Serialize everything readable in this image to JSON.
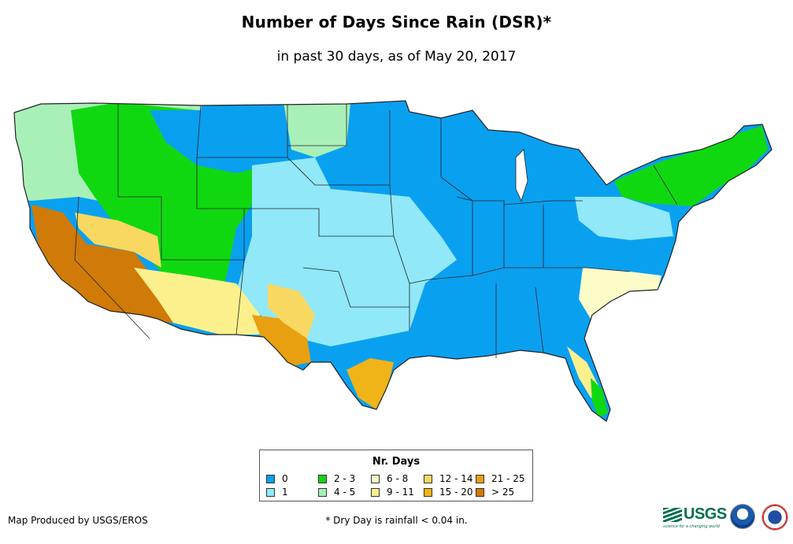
{
  "title": "Number of Days Since Rain (DSR)*",
  "subtitle": "in past 30 days, as of May 20, 2017",
  "legend": {
    "title": "Nr. Days",
    "items": [
      {
        "label": "0",
        "color": "#0aa0f0"
      },
      {
        "label": "1",
        "color": "#90e8f8"
      },
      {
        "label": "2 - 3",
        "color": "#10d810"
      },
      {
        "label": "4 - 5",
        "color": "#a8f0b8"
      },
      {
        "label": "6 - 8",
        "color": "#fcfcc8"
      },
      {
        "label": "9 - 11",
        "color": "#fcf08c"
      },
      {
        "label": "12 - 14",
        "color": "#f8d860"
      },
      {
        "label": "15 - 20",
        "color": "#f0b418"
      },
      {
        "label": "21 - 25",
        "color": "#e8a010"
      },
      {
        "label": "> 25",
        "color": "#d07a08"
      }
    ]
  },
  "footer": {
    "credit": "Map Produced by USGS/EROS",
    "footnote": "* Dry Day is rainfall < 0.04 in."
  },
  "logos": {
    "usgs": "USGS",
    "usgs_tagline": "science for a changing world",
    "noaa": "noaa-logo",
    "nws": "nws-logo"
  },
  "map_regions": [
    {
      "name": "pacific-northwest",
      "days": "4 - 5",
      "color": "#a8f0b8"
    },
    {
      "name": "northern-rockies",
      "days": "2 - 3",
      "color": "#10d810"
    },
    {
      "name": "northern-plains-midwest-southeast",
      "days": "0",
      "color": "#0aa0f0"
    },
    {
      "name": "central-southern-plains",
      "days": "1",
      "color": "#90e8f8"
    },
    {
      "name": "california-desert-southwest",
      "days": "> 25",
      "color": "#d07a08"
    },
    {
      "name": "great-basin",
      "days": "12 - 14",
      "color": "#f8d860"
    },
    {
      "name": "west-texas",
      "days": "21 - 25",
      "color": "#e8a010"
    },
    {
      "name": "south-texas",
      "days": "15 - 20",
      "color": "#f0b418"
    },
    {
      "name": "northeast",
      "days": "2 - 3",
      "color": "#10d810"
    },
    {
      "name": "mid-atlantic",
      "days": "6 - 8",
      "color": "#fcfcc8"
    },
    {
      "name": "florida",
      "days": "9 - 11",
      "color": "#fcf08c"
    }
  ]
}
